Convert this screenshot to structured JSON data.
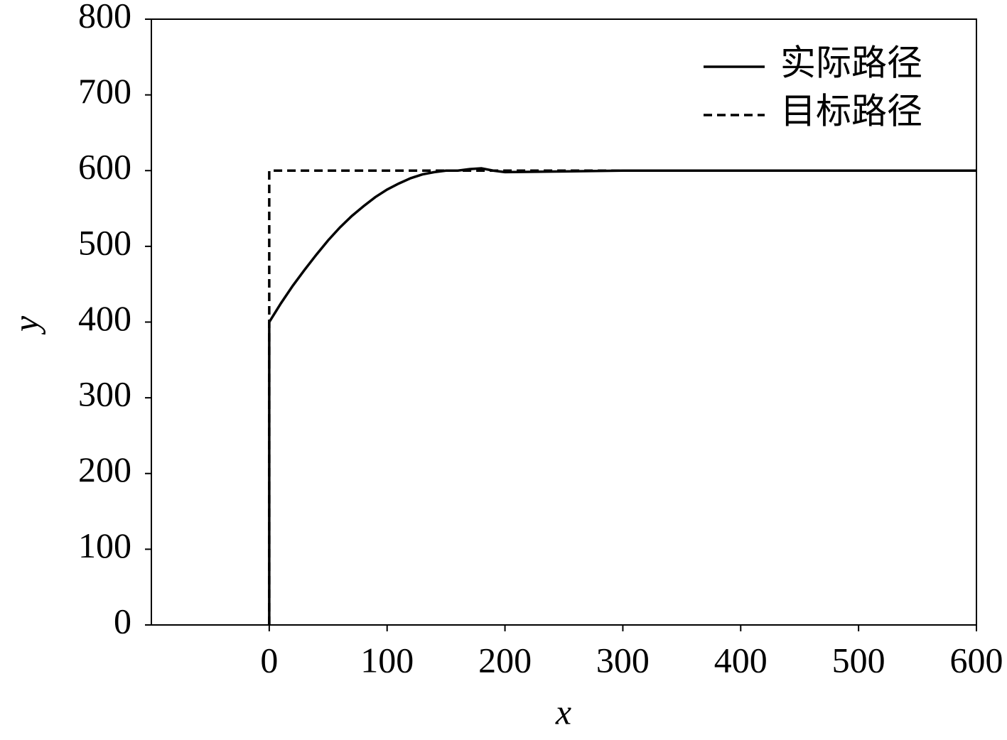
{
  "chart_data": {
    "type": "line",
    "x_label": "x",
    "y_label": "y",
    "xlim": [
      -100,
      600
    ],
    "xticks": [
      0,
      100,
      200,
      300,
      400,
      500,
      600
    ],
    "ylim": [
      0,
      800
    ],
    "yticks": [
      0,
      100,
      200,
      300,
      400,
      500,
      600,
      700,
      800
    ],
    "legend": "upper right",
    "series": [
      {
        "name": "实际路径",
        "color": "#000000",
        "linestyle": "solid",
        "x": [
          0,
          0,
          10,
          20,
          30,
          40,
          50,
          60,
          70,
          80,
          90,
          100,
          110,
          120,
          130,
          140,
          150,
          160,
          170,
          180,
          190,
          200,
          250,
          300,
          400,
          500,
          600
        ],
        "values": [
          0,
          400,
          425,
          448,
          469,
          489,
          508,
          525,
          540,
          553,
          565,
          575,
          583,
          590,
          595,
          598,
          600,
          600,
          602,
          603,
          600,
          598,
          599,
          600,
          600,
          600,
          600
        ]
      },
      {
        "name": "目标路径",
        "color": "#000000",
        "linestyle": "dashed",
        "x": [
          0,
          0,
          600
        ],
        "values": [
          0,
          600,
          600
        ]
      }
    ]
  }
}
